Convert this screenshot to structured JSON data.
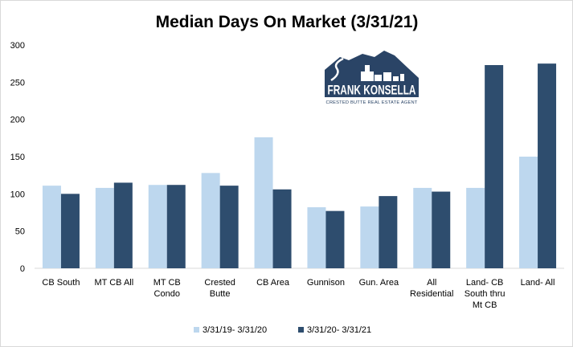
{
  "chart_data": {
    "type": "bar",
    "title": "Median Days On Market (3/31/21)",
    "categories": [
      [
        "CB South"
      ],
      [
        "MT CB All"
      ],
      [
        "MT CB",
        "Condo"
      ],
      [
        "Crested",
        "Butte"
      ],
      [
        "CB Area"
      ],
      [
        "Gunnison"
      ],
      [
        "Gun. Area"
      ],
      [
        "All",
        "Residential"
      ],
      [
        "Land- CB",
        "South thru",
        "Mt CB"
      ],
      [
        "Land- All"
      ]
    ],
    "series": [
      {
        "name": "3/31/19- 3/31/20",
        "color": "#bdd7ee",
        "values": [
          111,
          108,
          112,
          128,
          176,
          82,
          83,
          108,
          108,
          150
        ]
      },
      {
        "name": "3/31/20- 3/31/21",
        "color": "#2e4d6e",
        "values": [
          100,
          115,
          112,
          111,
          106,
          77,
          97,
          103,
          273,
          275
        ]
      }
    ],
    "ylim": [
      0,
      300
    ],
    "yticks": [
      0,
      50,
      100,
      150,
      200,
      250,
      300
    ],
    "grid": false,
    "legend_position": "bottom"
  },
  "logo": {
    "name": "FRANK KONSELLA",
    "tagline": "CRESTED BUTTE REAL ESTATE AGENT",
    "colors": {
      "mountain": "#2a4466",
      "text": "#ffffff"
    }
  }
}
